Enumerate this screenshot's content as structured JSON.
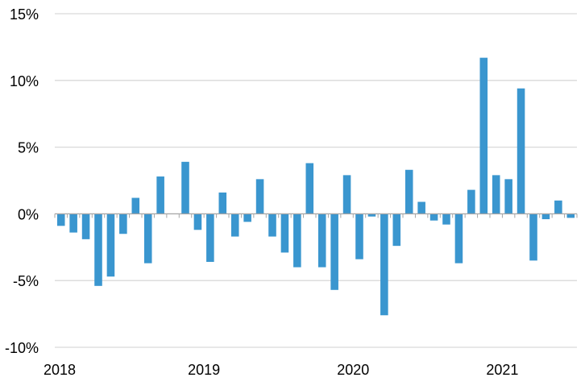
{
  "chart_data": {
    "type": "bar",
    "title": "",
    "xlabel": "",
    "ylabel": "",
    "ylim": [
      -10,
      15
    ],
    "y_ticks": [
      -10,
      -5,
      0,
      5,
      10,
      15
    ],
    "y_tick_labels": [
      "-10%",
      "-5%",
      "0%",
      "5%",
      "10%",
      "15%"
    ],
    "x_tick_labels": [
      "2018",
      "2019",
      "2020",
      "2021"
    ],
    "x_tick_index": [
      0,
      12,
      24,
      36
    ],
    "grid": "horizontal",
    "colors": {
      "bar": "#3a96cf",
      "grid": "#d9d9d9",
      "axis": "#a6a6a6"
    },
    "series": [
      {
        "values": [
          -0.9,
          -1.4,
          -1.9,
          -5.4,
          -4.7,
          -1.5,
          1.2,
          -3.7,
          2.8,
          0,
          3.9,
          -1.2,
          -3.6,
          1.6,
          -1.7,
          -0.6,
          2.6,
          -1.7,
          -2.9,
          -4.0,
          3.8,
          -4.0,
          -5.7,
          2.9,
          -3.4,
          -0.2,
          -7.6,
          -2.4,
          3.3,
          0.9,
          -0.5,
          -0.8,
          -3.7,
          1.8,
          11.7,
          2.9,
          2.6,
          9.4,
          -3.5,
          -0.4,
          1.0,
          -0.3
        ]
      }
    ]
  }
}
